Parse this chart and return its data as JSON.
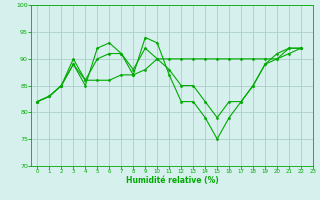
{
  "xlabel": "Humidité relative (%)",
  "xlim": [
    -0.5,
    23
  ],
  "ylim": [
    70,
    100
  ],
  "yticks": [
    70,
    75,
    80,
    85,
    90,
    95,
    100
  ],
  "xticks": [
    0,
    1,
    2,
    3,
    4,
    5,
    6,
    7,
    8,
    9,
    10,
    11,
    12,
    13,
    14,
    15,
    16,
    17,
    18,
    19,
    20,
    21,
    22,
    23
  ],
  "background_color": "#d6f0ee",
  "grid_color": "#aacfca",
  "line_color": "#00aa00",
  "series": [
    [
      82,
      83,
      85,
      89,
      85,
      92,
      93,
      91,
      87,
      94,
      93,
      87,
      82,
      82,
      79,
      75,
      79,
      82,
      85,
      89,
      90,
      92,
      92
    ],
    [
      82,
      83,
      85,
      90,
      86,
      90,
      91,
      91,
      88,
      92,
      90,
      88,
      85,
      85,
      82,
      79,
      82,
      82,
      85,
      89,
      91,
      92,
      92
    ],
    [
      82,
      83,
      85,
      89,
      86,
      86,
      86,
      87,
      87,
      88,
      90,
      90,
      90,
      90,
      90,
      90,
      90,
      90,
      90,
      90,
      90,
      91,
      92
    ]
  ]
}
